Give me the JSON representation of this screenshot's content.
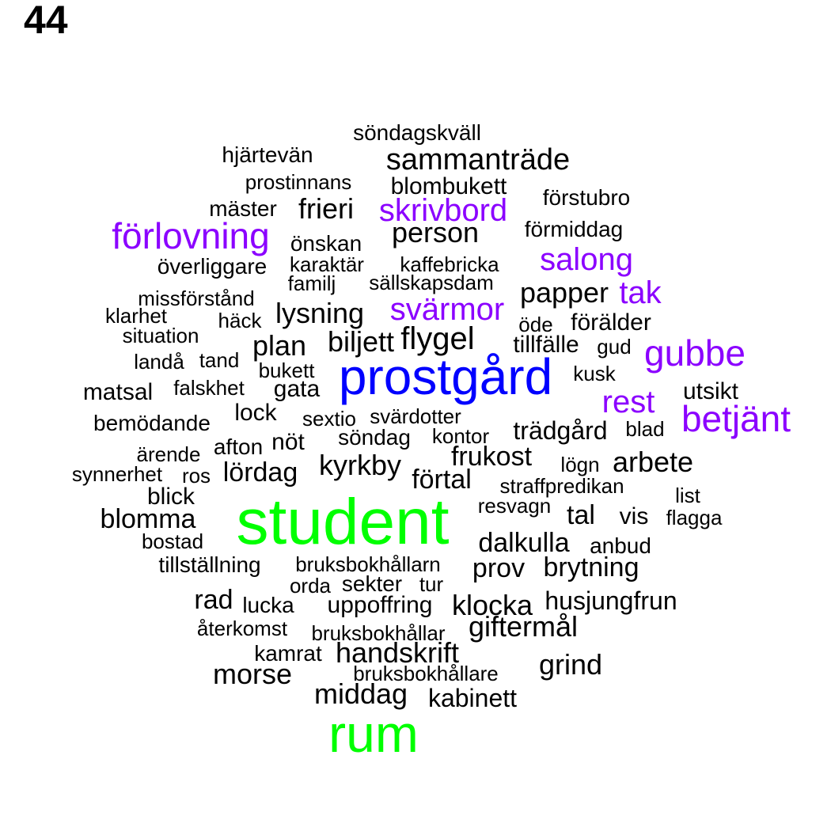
{
  "page_number": "44",
  "colors": {
    "level1": "#000000",
    "level2": "#8B00FF",
    "level3": "#0000FF",
    "level4": "#00FF00"
  },
  "words": [
    {
      "text": "söndagskväll",
      "level": 1
    },
    {
      "text": "hjärtevän",
      "level": 1
    },
    {
      "text": "sammanträde",
      "level": 1
    },
    {
      "text": "prostinnans",
      "level": 1
    },
    {
      "text": "blombukett",
      "level": 1
    },
    {
      "text": "förstubro",
      "level": 1
    },
    {
      "text": "mäster",
      "level": 1
    },
    {
      "text": "frieri",
      "level": 1
    },
    {
      "text": "skrivbord",
      "level": 2
    },
    {
      "text": "förlovning",
      "level": 2
    },
    {
      "text": "person",
      "level": 1
    },
    {
      "text": "förmiddag",
      "level": 1
    },
    {
      "text": "önskan",
      "level": 1
    },
    {
      "text": "salong",
      "level": 2
    },
    {
      "text": "överliggare",
      "level": 1
    },
    {
      "text": "karaktär",
      "level": 1
    },
    {
      "text": "kaffebricka",
      "level": 1
    },
    {
      "text": "familj",
      "level": 1
    },
    {
      "text": "sällskapsdam",
      "level": 1
    },
    {
      "text": "papper",
      "level": 1
    },
    {
      "text": "tak",
      "level": 2
    },
    {
      "text": "missförstånd",
      "level": 1
    },
    {
      "text": "svärmor",
      "level": 2
    },
    {
      "text": "klarhet",
      "level": 1
    },
    {
      "text": "lysning",
      "level": 1
    },
    {
      "text": "häck",
      "level": 1
    },
    {
      "text": "öde",
      "level": 1
    },
    {
      "text": "förälder",
      "level": 1
    },
    {
      "text": "situation",
      "level": 1
    },
    {
      "text": "flygel",
      "level": 1
    },
    {
      "text": "plan",
      "level": 1
    },
    {
      "text": "biljett",
      "level": 1
    },
    {
      "text": "tillfälle",
      "level": 1
    },
    {
      "text": "gud",
      "level": 1
    },
    {
      "text": "gubbe",
      "level": 2
    },
    {
      "text": "landå",
      "level": 1
    },
    {
      "text": "tand",
      "level": 1
    },
    {
      "text": "bukett",
      "level": 1
    },
    {
      "text": "prostgård",
      "level": 3
    },
    {
      "text": "kusk",
      "level": 1
    },
    {
      "text": "matsal",
      "level": 1
    },
    {
      "text": "falskhet",
      "level": 1
    },
    {
      "text": "gata",
      "level": 1
    },
    {
      "text": "utsikt",
      "level": 1
    },
    {
      "text": "rest",
      "level": 2
    },
    {
      "text": "betjänt",
      "level": 2
    },
    {
      "text": "lock",
      "level": 1
    },
    {
      "text": "sextio",
      "level": 1
    },
    {
      "text": "svärdotter",
      "level": 1
    },
    {
      "text": "bemödande",
      "level": 1
    },
    {
      "text": "trädgård",
      "level": 1
    },
    {
      "text": "blad",
      "level": 1
    },
    {
      "text": "nöt",
      "level": 1
    },
    {
      "text": "söndag",
      "level": 1
    },
    {
      "text": "kontor",
      "level": 1
    },
    {
      "text": "afton",
      "level": 1
    },
    {
      "text": "ärende",
      "level": 1
    },
    {
      "text": "frukost",
      "level": 1
    },
    {
      "text": "arbete",
      "level": 1
    },
    {
      "text": "kyrkby",
      "level": 1
    },
    {
      "text": "lögn",
      "level": 1
    },
    {
      "text": "synnerhet",
      "level": 1
    },
    {
      "text": "ros",
      "level": 1
    },
    {
      "text": "lördag",
      "level": 1
    },
    {
      "text": "förtal",
      "level": 1
    },
    {
      "text": "straffpredikan",
      "level": 1
    },
    {
      "text": "blick",
      "level": 1
    },
    {
      "text": "list",
      "level": 1
    },
    {
      "text": "student",
      "level": 4
    },
    {
      "text": "resvagn",
      "level": 1
    },
    {
      "text": "blomma",
      "level": 1
    },
    {
      "text": "tal",
      "level": 1
    },
    {
      "text": "vis",
      "level": 1
    },
    {
      "text": "flagga",
      "level": 1
    },
    {
      "text": "bostad",
      "level": 1
    },
    {
      "text": "dalkulla",
      "level": 1
    },
    {
      "text": "anbud",
      "level": 1
    },
    {
      "text": "tillställning",
      "level": 1
    },
    {
      "text": "bruksbokhållarn",
      "level": 1
    },
    {
      "text": "prov",
      "level": 1
    },
    {
      "text": "brytning",
      "level": 1
    },
    {
      "text": "orda",
      "level": 1
    },
    {
      "text": "sekter",
      "level": 1
    },
    {
      "text": "tur",
      "level": 1
    },
    {
      "text": "rad",
      "level": 1
    },
    {
      "text": "lucka",
      "level": 1
    },
    {
      "text": "uppoffring",
      "level": 1
    },
    {
      "text": "klocka",
      "level": 1
    },
    {
      "text": "husjungfrun",
      "level": 1
    },
    {
      "text": "återkomst",
      "level": 1
    },
    {
      "text": "bruksbokhållar",
      "level": 1
    },
    {
      "text": "giftermål",
      "level": 1
    },
    {
      "text": "kamrat",
      "level": 1
    },
    {
      "text": "handskrift",
      "level": 1
    },
    {
      "text": "grind",
      "level": 1
    },
    {
      "text": "morse",
      "level": 1
    },
    {
      "text": "bruksbokhållare",
      "level": 1
    },
    {
      "text": "middag",
      "level": 1
    },
    {
      "text": "kabinett",
      "level": 1
    },
    {
      "text": "rum",
      "level": 4
    }
  ]
}
